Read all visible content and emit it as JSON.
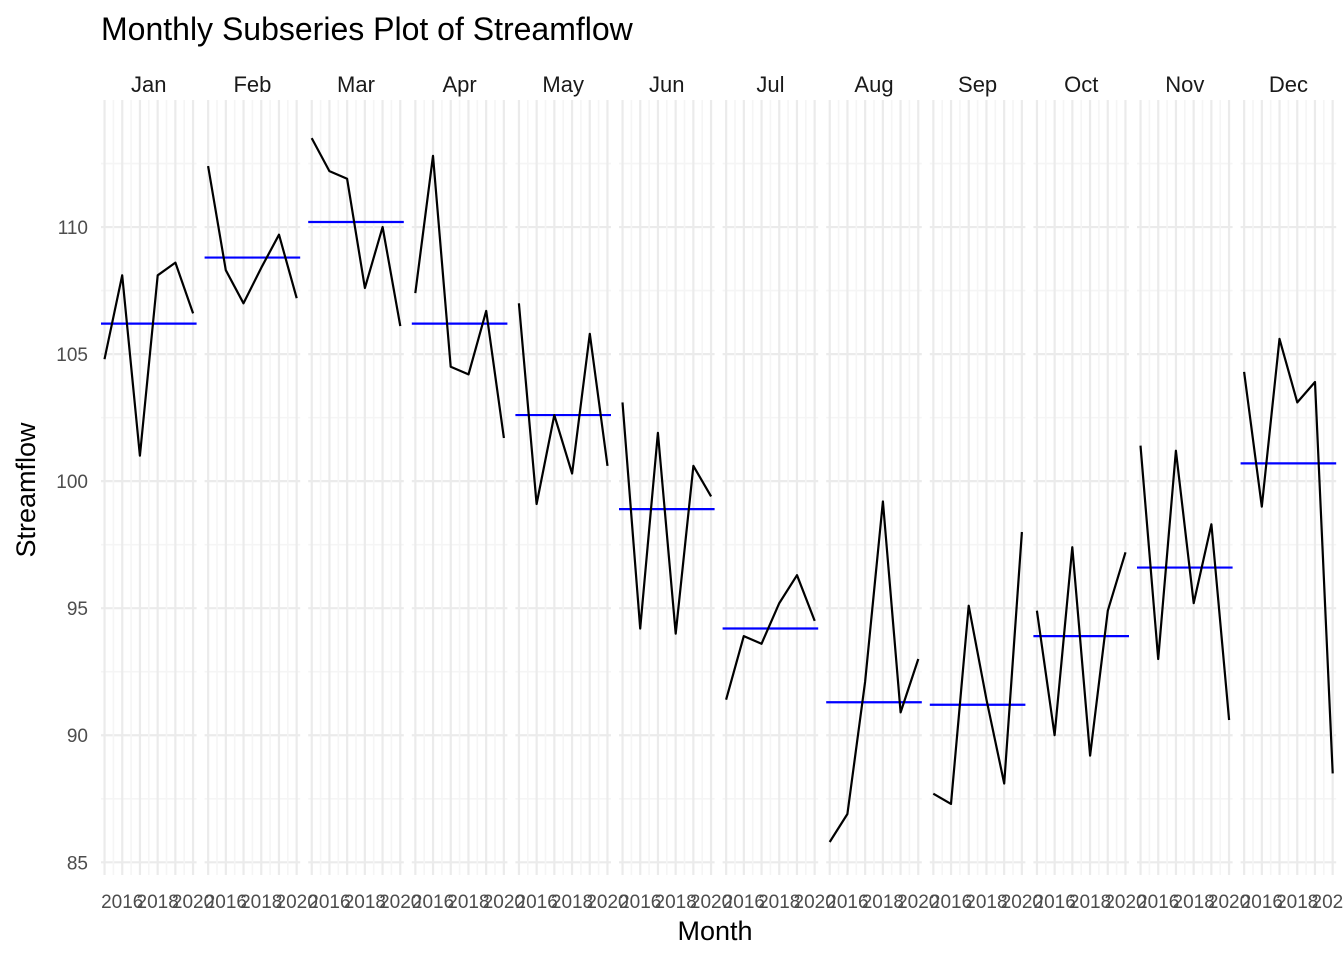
{
  "chart_data": {
    "type": "line",
    "title": "Monthly Subseries Plot of Streamflow",
    "xlabel": "Month",
    "ylabel": "Streamflow",
    "ylim": [
      84.5,
      115.0
    ],
    "yticks": [
      85,
      90,
      95,
      100,
      105,
      110
    ],
    "grid": true,
    "years": [
      2015,
      2016,
      2017,
      2018,
      2019,
      2020
    ],
    "xtick_labels": [
      "2016",
      "2018",
      "2020"
    ],
    "facets": [
      {
        "month": "Jan",
        "values": [
          104.8,
          108.1,
          101.0,
          108.1,
          108.6,
          106.6
        ],
        "mean": 106.2
      },
      {
        "month": "Feb",
        "values": [
          112.4,
          108.3,
          107.0,
          108.4,
          109.7,
          107.2
        ],
        "mean": 108.8
      },
      {
        "month": "Mar",
        "values": [
          113.5,
          112.2,
          111.9,
          107.6,
          110.0,
          106.1
        ],
        "mean": 110.2
      },
      {
        "month": "Apr",
        "values": [
          107.4,
          112.8,
          104.5,
          104.2,
          106.7,
          101.7
        ],
        "mean": 106.2
      },
      {
        "month": "May",
        "values": [
          107.0,
          99.1,
          102.6,
          100.3,
          105.8,
          100.6
        ],
        "mean": 102.6
      },
      {
        "month": "Jun",
        "values": [
          103.1,
          94.2,
          101.9,
          94.0,
          100.6,
          99.4
        ],
        "mean": 98.9
      },
      {
        "month": "Jul",
        "values": [
          91.4,
          93.9,
          93.6,
          95.2,
          96.3,
          94.5
        ],
        "mean": 94.2
      },
      {
        "month": "Aug",
        "values": [
          85.8,
          86.9,
          92.1,
          99.2,
          90.9,
          93.0
        ],
        "mean": 91.3
      },
      {
        "month": "Sep",
        "values": [
          87.7,
          87.3,
          95.1,
          91.4,
          88.1,
          98.0
        ],
        "mean": 91.2
      },
      {
        "month": "Oct",
        "values": [
          94.9,
          90.0,
          97.4,
          89.2,
          94.9,
          97.2
        ],
        "mean": 93.9
      },
      {
        "month": "Nov",
        "values": [
          101.4,
          93.0,
          101.2,
          95.2,
          98.3,
          90.6
        ],
        "mean": 96.6
      },
      {
        "month": "Dec",
        "values": [
          104.3,
          99.0,
          105.6,
          103.1,
          103.9,
          88.5
        ],
        "mean": 100.7
      }
    ],
    "colors": {
      "series": "#000000",
      "mean_line": "#0000ff",
      "grid_major": "#ebebeb",
      "grid_minor": "#f5f5f5"
    }
  }
}
